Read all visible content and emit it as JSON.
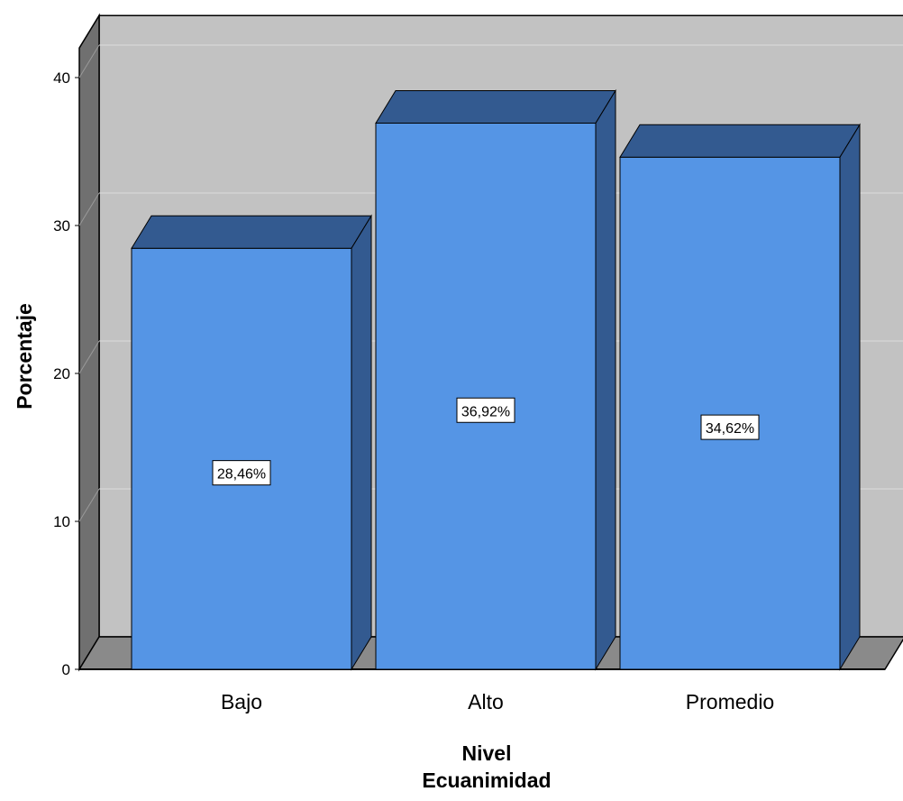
{
  "chart_data": {
    "type": "bar",
    "categories": [
      "Bajo",
      "Alto",
      "Promedio"
    ],
    "values": [
      28.46,
      36.92,
      34.62
    ],
    "data_labels": [
      "28,46%",
      "36,92%",
      "34,62%"
    ],
    "ylabel": "Porcentaje",
    "xlabel_lines": [
      "Nivel",
      "Ecuanimidad"
    ],
    "ylim": [
      0,
      42
    ],
    "yticks": [
      0,
      10,
      20,
      30,
      40
    ],
    "ytick_labels": [
      "0",
      "10",
      "20",
      "30",
      "40"
    ],
    "grid": true,
    "style": "3d"
  },
  "colors": {
    "bar_front": "#5595e5",
    "bar_top": "#335a90",
    "bar_side": "#335a90",
    "back_wall": "#c2c2c2",
    "side_wall": "#707070",
    "floor": "#8a8a8a",
    "grid": "#dcdcdc",
    "edge": "#000000"
  }
}
